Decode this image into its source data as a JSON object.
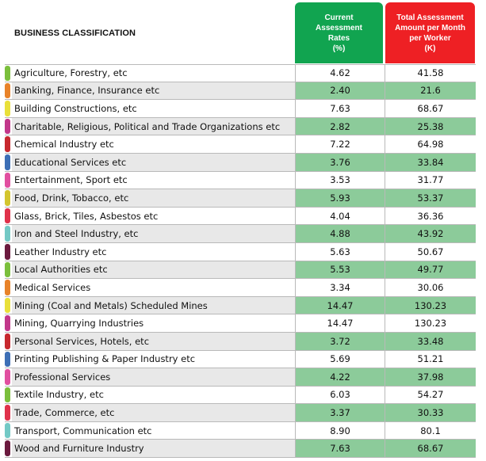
{
  "header": {
    "title": "BUSINESS CLASSIFICATION",
    "col1": [
      "Current",
      "Assessment",
      "Rates",
      "(%)"
    ],
    "col2": [
      "Total Assessment",
      "Amount per Month",
      "per Worker",
      "(K)"
    ],
    "col1_color": "#11a450",
    "col2_color": "#ee2024"
  },
  "rows": [
    {
      "name": "Agriculture, Forestry, etc",
      "rate": "4.62",
      "amount": "41.58",
      "color": "#7bbf3c"
    },
    {
      "name": "Banking, Finance, Insurance etc",
      "rate": "2.40",
      "amount": "21.6",
      "color": "#e8832a"
    },
    {
      "name": "Building Constructions, etc",
      "rate": "7.63",
      "amount": "68.67",
      "color": "#e9e03a"
    },
    {
      "name": "Charitable, Religious, Political and Trade Organizations etc",
      "rate": "2.82",
      "amount": "25.38",
      "color": "#c2378a"
    },
    {
      "name": "Chemical Industry etc",
      "rate": "7.22",
      "amount": "64.98",
      "color": "#c7282e"
    },
    {
      "name": "Educational Services etc",
      "rate": "3.76",
      "amount": "33.84",
      "color": "#3d6fb6"
    },
    {
      "name": "Entertainment, Sport etc",
      "rate": "3.53",
      "amount": "31.77",
      "color": "#e14fa0"
    },
    {
      "name": "Food, Drink, Tobacco, etc",
      "rate": "5.93",
      "amount": "53.37",
      "color": "#d3c52e"
    },
    {
      "name": "Glass, Brick, Tiles, Asbestos etc",
      "rate": "4.04",
      "amount": "36.36",
      "color": "#e0324b"
    },
    {
      "name": "Iron and Steel Industry, etc",
      "rate": "4.88",
      "amount": "43.92",
      "color": "#73c9c5"
    },
    {
      "name": "Leather Industry etc",
      "rate": "5.63",
      "amount": "50.67",
      "color": "#6b1a3e"
    },
    {
      "name": "Local Authorities etc",
      "rate": "5.53",
      "amount": "49.77",
      "color": "#7bbf3c"
    },
    {
      "name": "Medical Services",
      "rate": "3.34",
      "amount": "30.06",
      "color": "#e8832a"
    },
    {
      "name": "Mining (Coal and Metals) Scheduled Mines",
      "rate": "14.47",
      "amount": "130.23",
      "color": "#e9e03a"
    },
    {
      "name": "Mining, Quarrying Industries",
      "rate": "14.47",
      "amount": "130.23",
      "color": "#c2378a"
    },
    {
      "name": "Personal Services, Hotels, etc",
      "rate": "3.72",
      "amount": "33.48",
      "color": "#c7282e"
    },
    {
      "name": "Printing Publishing & Paper Industry etc",
      "rate": "5.69",
      "amount": "51.21",
      "color": "#3d6fb6"
    },
    {
      "name": "Professional Services",
      "rate": "4.22",
      "amount": "37.98",
      "color": "#e14fa0"
    },
    {
      "name": "Textile Industry, etc",
      "rate": "6.03",
      "amount": "54.27",
      "color": "#7bbf3c"
    },
    {
      "name": "Trade, Commerce, etc",
      "rate": "3.37",
      "amount": "30.33",
      "color": "#e0324b"
    },
    {
      "name": "Transport, Communication etc",
      "rate": "8.90",
      "amount": "80.1",
      "color": "#73c9c5"
    },
    {
      "name": "Wood and Furniture Industry",
      "rate": "7.63",
      "amount": "68.67",
      "color": "#6b1a3e"
    }
  ]
}
